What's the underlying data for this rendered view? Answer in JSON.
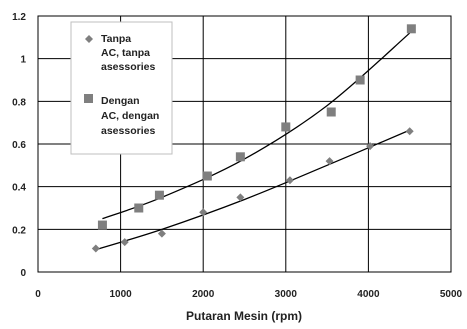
{
  "chart_data": {
    "type": "scatter",
    "title": "",
    "xlabel": "Putaran Mesin (rpm)",
    "ylabel": "",
    "xlim": [
      0,
      5000
    ],
    "ylim": [
      0,
      1.2
    ],
    "x_ticks": [
      0,
      1000,
      2000,
      3000,
      4000,
      5000
    ],
    "y_ticks": [
      0,
      0.2,
      0.4,
      0.6,
      0.8,
      1,
      1.2
    ],
    "x_tick_labels": [
      "0",
      "1000",
      "2000",
      "3000",
      "4000",
      "5000"
    ],
    "y_tick_labels": [
      "0",
      "0.2",
      "0.4",
      "0.6",
      "0.8",
      "1",
      "1.2"
    ],
    "grid": "both",
    "legend_position": "top-left",
    "series": [
      {
        "name": "Tanpa AC, tanpa asessories",
        "legend_lines": [
          "Tanpa",
          "AC, tanpa",
          "asessories"
        ],
        "marker": "diamond",
        "color": "#7f7f7f",
        "x": [
          700,
          1050,
          1500,
          2000,
          2450,
          3050,
          3530,
          4020,
          4500
        ],
        "y": [
          0.11,
          0.14,
          0.18,
          0.28,
          0.35,
          0.43,
          0.52,
          0.59,
          0.66
        ],
        "trend": {
          "x": [
            700,
            1500,
            2500,
            3500,
            4500
          ],
          "y": [
            0.105,
            0.2,
            0.34,
            0.5,
            0.665
          ]
        }
      },
      {
        "name": "Dengan AC, dengan asessories",
        "legend_lines": [
          "Dengan",
          "AC, dengan",
          "asessories"
        ],
        "marker": "square",
        "color": "#7f7f7f",
        "x": [
          780,
          1220,
          1470,
          2050,
          2450,
          3000,
          3550,
          3900,
          4520
        ],
        "y": [
          0.22,
          0.3,
          0.36,
          0.45,
          0.54,
          0.68,
          0.75,
          0.9,
          1.14
        ],
        "trend": {
          "x": [
            780,
            1500,
            2500,
            3500,
            4500
          ],
          "y": [
            0.25,
            0.35,
            0.53,
            0.78,
            1.12
          ]
        }
      }
    ]
  }
}
